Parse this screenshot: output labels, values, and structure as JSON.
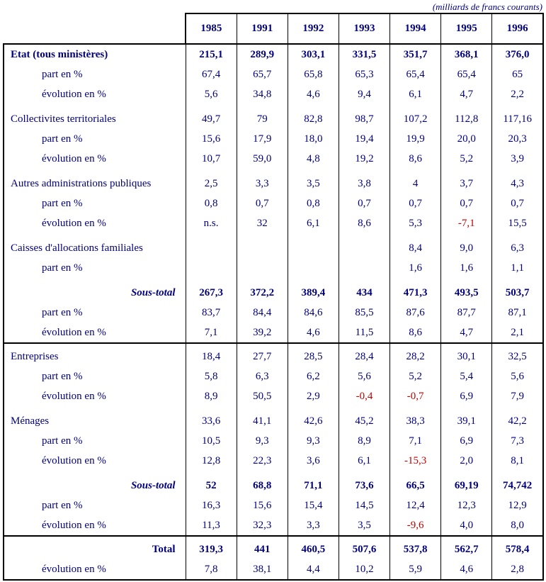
{
  "caption": "(milliards de francs courants)",
  "colors": {
    "text": "#000080",
    "negative": "#c00000",
    "border": "#000000"
  },
  "table": {
    "years": [
      "1985",
      "1991",
      "1992",
      "1993",
      "1994",
      "1995",
      "1996"
    ],
    "rows": [
      {
        "label": "Etat (tous ministères)",
        "style": "category-bold",
        "gap": false,
        "section": false,
        "values": [
          "215,1",
          "289,9",
          "303,1",
          "331,5",
          "351,7",
          "368,1",
          "376,0"
        ]
      },
      {
        "label": "part en %",
        "style": "sub",
        "gap": false,
        "section": false,
        "values": [
          "67,4",
          "65,7",
          "65,8",
          "65,3",
          "65,4",
          "65,4",
          "65"
        ]
      },
      {
        "label": "évolution en %",
        "style": "sub",
        "gap": false,
        "section": false,
        "values": [
          "5,6",
          "34,8",
          "4,6",
          "9,4",
          "6,1",
          "4,7",
          "2,2"
        ]
      },
      {
        "label": "Collectivites territoriales",
        "style": "category",
        "gap": true,
        "section": false,
        "values": [
          "49,7",
          "79",
          "82,8",
          "98,7",
          "107,2",
          "112,8",
          "117,16"
        ]
      },
      {
        "label": "part en %",
        "style": "sub",
        "gap": false,
        "section": false,
        "values": [
          "15,6",
          "17,9",
          "18,0",
          "19,4",
          "19,9",
          "20,0",
          "20,3"
        ]
      },
      {
        "label": "évolution en %",
        "style": "sub",
        "gap": false,
        "section": false,
        "values": [
          "10,7",
          "59,0",
          "4,8",
          "19,2",
          "8,6",
          "5,2",
          "3,9"
        ]
      },
      {
        "label": "Autres administrations publiques",
        "style": "category",
        "gap": true,
        "section": false,
        "values": [
          "2,5",
          "3,3",
          "3,5",
          "3,8",
          "4",
          "3,7",
          "4,3"
        ]
      },
      {
        "label": "part en %",
        "style": "sub",
        "gap": false,
        "section": false,
        "values": [
          "0,8",
          "0,7",
          "0,8",
          "0,7",
          "0,7",
          "0,7",
          "0,7"
        ]
      },
      {
        "label": "évolution en %",
        "style": "sub",
        "gap": false,
        "section": false,
        "values": [
          "n.s.",
          "32",
          "6,1",
          "8,6",
          "5,3",
          "-7,1",
          "15,5"
        ]
      },
      {
        "label": "Caisses d'allocations familiales",
        "style": "category",
        "gap": true,
        "section": false,
        "values": [
          "",
          "",
          "",
          "",
          "8,4",
          "9,0",
          "6,3"
        ]
      },
      {
        "label": "part en %",
        "style": "sub",
        "gap": false,
        "section": false,
        "values": [
          "",
          "",
          "",
          "",
          "1,6",
          "1,6",
          "1,1"
        ]
      },
      {
        "label": "Sous-total",
        "style": "subtotal",
        "gap": true,
        "section": false,
        "values": [
          "267,3",
          "372,2",
          "389,4",
          "434",
          "471,3",
          "493,5",
          "503,7"
        ]
      },
      {
        "label": "part en %",
        "style": "sub",
        "gap": false,
        "section": false,
        "values": [
          "83,7",
          "84,4",
          "84,6",
          "85,5",
          "87,6",
          "87,7",
          "87,1"
        ]
      },
      {
        "label": "évolution en %",
        "style": "sub",
        "gap": false,
        "section": false,
        "values": [
          "7,1",
          "39,2",
          "4,6",
          "11,5",
          "8,6",
          "4,7",
          "2,1"
        ]
      },
      {
        "label": "Entreprises",
        "style": "category",
        "gap": false,
        "section": true,
        "values": [
          "18,4",
          "27,7",
          "28,5",
          "28,4",
          "28,2",
          "30,1",
          "32,5"
        ]
      },
      {
        "label": "part en %",
        "style": "sub",
        "gap": false,
        "section": false,
        "values": [
          "5,8",
          "6,3",
          "6,2",
          "5,6",
          "5,2",
          "5,4",
          "5,6"
        ]
      },
      {
        "label": "évolution en %",
        "style": "sub",
        "gap": false,
        "section": false,
        "values": [
          "8,9",
          "50,5",
          "2,9",
          "-0,4",
          "-0,7",
          "6,9",
          "7,9"
        ]
      },
      {
        "label": "Ménages",
        "style": "category",
        "gap": true,
        "section": false,
        "values": [
          "33,6",
          "41,1",
          "42,6",
          "45,2",
          "38,3",
          "39,1",
          "42,2"
        ]
      },
      {
        "label": "part en %",
        "style": "sub",
        "gap": false,
        "section": false,
        "values": [
          "10,5",
          "9,3",
          "9,3",
          "8,9",
          "7,1",
          "6,9",
          "7,3"
        ]
      },
      {
        "label": "évolution en %",
        "style": "sub",
        "gap": false,
        "section": false,
        "values": [
          "12,8",
          "22,3",
          "3,6",
          "6,1",
          "-15,3",
          "2,0",
          "8,1"
        ]
      },
      {
        "label": "Sous-total",
        "style": "subtotal",
        "gap": true,
        "section": false,
        "values": [
          "52",
          "68,8",
          "71,1",
          "73,6",
          "66,5",
          "69,19",
          "74,742"
        ]
      },
      {
        "label": "part en %",
        "style": "sub",
        "gap": false,
        "section": false,
        "values": [
          "16,3",
          "15,6",
          "15,4",
          "14,5",
          "12,4",
          "12,3",
          "12,9"
        ]
      },
      {
        "label": "évolution en %",
        "style": "sub",
        "gap": false,
        "section": false,
        "values": [
          "11,3",
          "32,3",
          "3,3",
          "3,5",
          "-9,6",
          "4,0",
          "8,0"
        ]
      },
      {
        "label": "Total",
        "style": "total",
        "gap": false,
        "section": true,
        "values": [
          "319,3",
          "441",
          "460,5",
          "507,6",
          "537,8",
          "562,7",
          "578,4"
        ]
      },
      {
        "label": "évolution en %",
        "style": "sub",
        "gap": false,
        "section": false,
        "values": [
          "7,8",
          "38,1",
          "4,4",
          "10,2",
          "5,9",
          "4,6",
          "2,8"
        ]
      }
    ]
  }
}
